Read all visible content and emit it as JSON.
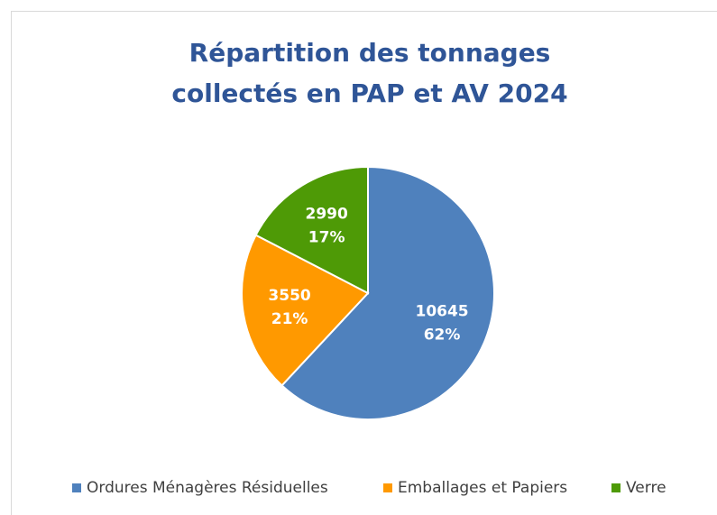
{
  "chart_data": {
    "type": "pie",
    "title": [
      "Répartition des tonnages",
      "collectés en PAP et AV 2024"
    ],
    "categories": [
      "Ordures Ménagères Résiduelles",
      "Emballages et Papiers",
      "Verre"
    ],
    "values": [
      10645,
      3550,
      2990
    ],
    "percent_labels": [
      "62%",
      "21%",
      "17%"
    ],
    "colors": [
      "#4f81bd",
      "#ff9900",
      "#4e9a06"
    ],
    "legend": "bottom"
  }
}
